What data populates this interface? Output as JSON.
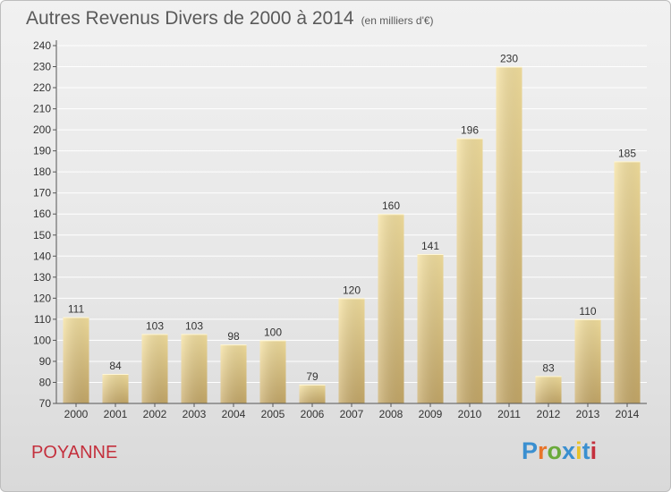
{
  "header": {
    "title": "Autres Revenus Divers de 2000 à 2014",
    "subtitle": "(en milliers d'€)"
  },
  "footer": {
    "commune": "POYANNE",
    "logo_text": "Proxiti",
    "logo_colors": [
      "#3a8fd0",
      "#e8742a",
      "#6aaa3a",
      "#3a8fd0",
      "#e8c22a",
      "#3a8fd0",
      "#c4303d"
    ]
  },
  "colors": {
    "bar_light": "#f6e2a0",
    "bar_dark": "#c8ab6a",
    "axis": "#555555",
    "grid": "#ffffff",
    "text": "#333333"
  },
  "chart_data": {
    "type": "bar",
    "title": "Autres Revenus Divers de 2000 à 2014",
    "subtitle": "(en milliers d'€)",
    "categories": [
      "2000",
      "2001",
      "2002",
      "2003",
      "2004",
      "2005",
      "2006",
      "2007",
      "2008",
      "2009",
      "2010",
      "2011",
      "2012",
      "2013",
      "2014"
    ],
    "values": [
      111,
      84,
      103,
      103,
      98,
      100,
      79,
      120,
      160,
      141,
      196,
      230,
      83,
      110,
      185
    ],
    "ylim": [
      70,
      240
    ],
    "ytick_step": 10,
    "grid": true,
    "data_labels": true
  }
}
